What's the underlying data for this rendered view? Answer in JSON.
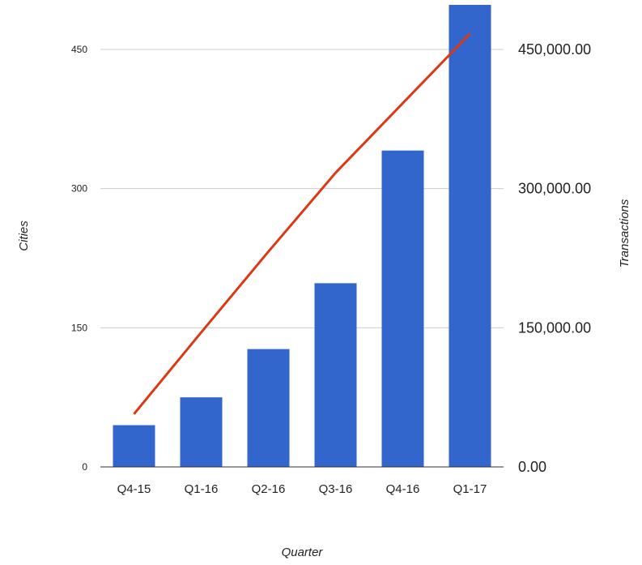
{
  "chart_data": {
    "type": "bar",
    "categories": [
      "Q4-15",
      "Q1-16",
      "Q2-16",
      "Q3-16",
      "Q4-16",
      "Q1-17"
    ],
    "series": [
      {
        "name": "",
        "kind": "bar",
        "axis": "left",
        "color": "#3366cc",
        "values": [
          45,
          75,
          127,
          198,
          341,
          498
        ]
      },
      {
        "name": "",
        "kind": "line",
        "axis": "right",
        "color": "#dc3912",
        "values": [
          57000,
          145000,
          232000,
          317000,
          392000,
          467000
        ]
      }
    ],
    "xlabel": "Quarter",
    "ylabel_left": "Cities",
    "ylabel_right": "Transactions",
    "ylim_left": [
      0,
      498
    ],
    "ylim_right": [
      0,
      498000
    ],
    "yticks_left": [
      {
        "value": 0,
        "label": "0"
      },
      {
        "value": 150,
        "label": "150"
      },
      {
        "value": 300,
        "label": "300"
      },
      {
        "value": 450,
        "label": "450"
      }
    ],
    "yticks_right": [
      {
        "value": 0,
        "label": "0.00"
      },
      {
        "value": 150000,
        "label": "150,000.00"
      },
      {
        "value": 300000,
        "label": "300,000.00"
      },
      {
        "value": 450000,
        "label": "450,000.00"
      }
    ],
    "grid": true,
    "legend": "none"
  }
}
